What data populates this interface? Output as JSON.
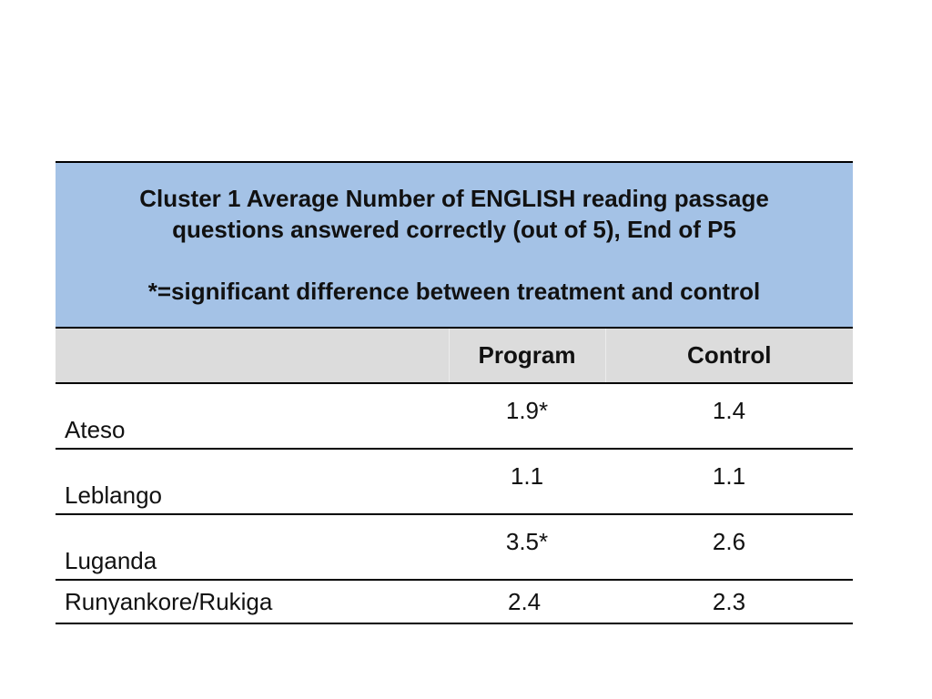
{
  "chart_data": {
    "type": "table",
    "title": "Cluster 1 Average Number of ENGLISH reading passage questions answered correctly (out of 5), End of P5",
    "title_lines": [
      "Cluster 1 Average Number of ENGLISH reading passage",
      "questions answered correctly (out of 5), End of P5"
    ],
    "note": "*=significant difference between treatment and control",
    "columns": [
      "",
      "Program",
      "Control"
    ],
    "rows": [
      {
        "label": "Ateso",
        "program": "1.9*",
        "control": "1.4"
      },
      {
        "label": "Leblango",
        "program": "1.1",
        "control": "1.1"
      },
      {
        "label": "Luganda",
        "program": "3.5*",
        "control": "2.6"
      },
      {
        "label": "Runyankore/Rukiga",
        "program": "2.4",
        "control": "2.3"
      }
    ],
    "colors": {
      "title_background": "#a4c2e6",
      "header_background": "#dcdcdc"
    }
  }
}
